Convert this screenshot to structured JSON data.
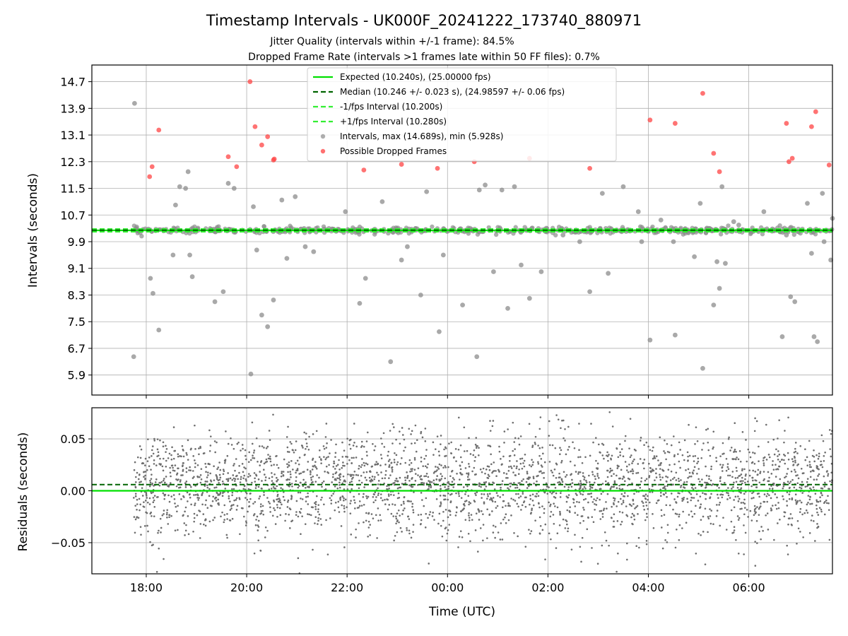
{
  "header": {
    "title": "Timestamp Intervals - UK000F_20241222_173740_880971",
    "subtitle_1": "Jitter Quality (intervals within +/-1 frame): 84.5%",
    "subtitle_2": "Dropped Frame Rate (intervals >1 frames late within 50 FF files): 0.7%"
  },
  "chart_data": [
    {
      "type": "scatter",
      "ylabel": "Intervals (seconds)",
      "x_range": [
        "16:55",
        "07:40"
      ],
      "ylim": [
        5.3,
        15.2
      ],
      "grid": true,
      "legend_placement": "top-center",
      "yticks": [
        5.9,
        6.7,
        7.5,
        8.3,
        9.1,
        9.9,
        10.7,
        11.5,
        12.3,
        13.1,
        13.9,
        14.7
      ],
      "ytick_labels": [
        "5.9",
        "6.7",
        "7.5",
        "8.3",
        "9.1",
        "9.9",
        "10.7",
        "11.5",
        "12.3",
        "13.1",
        "13.9",
        "14.7"
      ],
      "reference_lines": {
        "expected": 10.24,
        "median": 10.246,
        "minus_one_frame": 10.2,
        "plus_one_frame": 10.28
      },
      "legend": [
        {
          "label": "Expected (10.240s), (25.00000 fps)",
          "style": "solid",
          "color": "#00e000"
        },
        {
          "label": "Median (10.246 +/- 0.023 s), (24.98597 +/- 0.06 fps)",
          "style": "dashed",
          "color": "#006400"
        },
        {
          "label": "-1/fps Interval (10.200s)",
          "style": "dashed",
          "color": "#33ee33"
        },
        {
          "label": "+1/fps Interval (10.280s)",
          "style": "dashed",
          "color": "#33ee33"
        },
        {
          "label": "Intervals, max (14.689s), min (5.928s)",
          "style": "dot",
          "color": "#888888"
        },
        {
          "label": "Possible Dropped Frames",
          "style": "dot",
          "color": "#ff3333"
        }
      ],
      "series": [
        {
          "name": "Possible Dropped Frames",
          "color": "#ff4444",
          "points": [
            [
              "18:04",
              11.85
            ],
            [
              "18:07",
              12.15
            ],
            [
              "18:15",
              13.25
            ],
            [
              "19:38",
              12.45
            ],
            [
              "19:48",
              12.15
            ],
            [
              "20:04",
              14.7
            ],
            [
              "20:10",
              13.35
            ],
            [
              "20:18",
              12.8
            ],
            [
              "20:25",
              13.05
            ],
            [
              "20:32",
              12.35
            ],
            [
              "20:33",
              12.38
            ],
            [
              "22:20",
              12.05
            ],
            [
              "23:05",
              12.22
            ],
            [
              "23:48",
              12.1
            ],
            [
              "00:32",
              12.3
            ],
            [
              "01:38",
              12.4
            ],
            [
              "02:50",
              12.1
            ],
            [
              "04:02",
              13.55
            ],
            [
              "04:32",
              13.45
            ],
            [
              "05:05",
              14.35
            ],
            [
              "05:18",
              12.55
            ],
            [
              "05:25",
              12.0
            ],
            [
              "06:45",
              13.45
            ],
            [
              "06:48",
              12.3
            ],
            [
              "06:52",
              12.4
            ],
            [
              "07:15",
              13.35
            ],
            [
              "07:20",
              13.8
            ],
            [
              "07:36",
              12.2
            ]
          ]
        },
        {
          "name": "Intervals",
          "color": "#8c8c8c",
          "points": [
            [
              "17:45",
              6.45
            ],
            [
              "17:46",
              14.05
            ],
            [
              "18:05",
              8.8
            ],
            [
              "18:08",
              8.35
            ],
            [
              "18:15",
              7.25
            ],
            [
              "18:32",
              9.5
            ],
            [
              "18:35",
              11.0
            ],
            [
              "18:40",
              11.55
            ],
            [
              "18:47",
              11.5
            ],
            [
              "18:50",
              12.0
            ],
            [
              "18:52",
              9.5
            ],
            [
              "18:55",
              8.85
            ],
            [
              "19:22",
              8.1
            ],
            [
              "19:32",
              8.4
            ],
            [
              "19:38",
              11.65
            ],
            [
              "19:45",
              11.5
            ],
            [
              "20:05",
              5.93
            ],
            [
              "20:08",
              10.95
            ],
            [
              "20:12",
              9.65
            ],
            [
              "20:18",
              7.7
            ],
            [
              "20:25",
              7.35
            ],
            [
              "20:32",
              8.15
            ],
            [
              "20:42",
              11.15
            ],
            [
              "20:48",
              9.4
            ],
            [
              "20:58",
              11.25
            ],
            [
              "21:10",
              9.75
            ],
            [
              "21:20",
              9.6
            ],
            [
              "21:58",
              10.8
            ],
            [
              "22:15",
              8.05
            ],
            [
              "22:22",
              8.8
            ],
            [
              "22:42",
              11.1
            ],
            [
              "22:52",
              6.3
            ],
            [
              "23:05",
              9.35
            ],
            [
              "23:12",
              9.75
            ],
            [
              "23:28",
              8.3
            ],
            [
              "23:35",
              11.4
            ],
            [
              "23:50",
              7.2
            ],
            [
              "23:55",
              9.5
            ],
            [
              "00:18",
              8.0
            ],
            [
              "00:35",
              6.45
            ],
            [
              "00:38",
              11.45
            ],
            [
              "00:45",
              11.6
            ],
            [
              "00:55",
              9.0
            ],
            [
              "01:05",
              11.45
            ],
            [
              "01:12",
              7.9
            ],
            [
              "01:20",
              11.55
            ],
            [
              "01:28",
              9.2
            ],
            [
              "01:38",
              8.2
            ],
            [
              "01:52",
              9.0
            ],
            [
              "02:18",
              10.1
            ],
            [
              "02:38",
              9.9
            ],
            [
              "02:50",
              8.4
            ],
            [
              "03:05",
              11.35
            ],
            [
              "03:12",
              8.95
            ],
            [
              "03:30",
              11.55
            ],
            [
              "03:48",
              10.8
            ],
            [
              "03:52",
              9.9
            ],
            [
              "04:02",
              6.95
            ],
            [
              "04:15",
              10.55
            ],
            [
              "04:30",
              9.9
            ],
            [
              "04:32",
              7.1
            ],
            [
              "04:55",
              9.45
            ],
            [
              "05:02",
              11.05
            ],
            [
              "05:05",
              6.1
            ],
            [
              "05:12",
              10.3
            ],
            [
              "05:18",
              8.0
            ],
            [
              "05:22",
              9.3
            ],
            [
              "05:25",
              8.5
            ],
            [
              "05:28",
              11.55
            ],
            [
              "05:32",
              9.25
            ],
            [
              "05:42",
              10.5
            ],
            [
              "05:48",
              10.4
            ],
            [
              "06:18",
              10.8
            ],
            [
              "06:40",
              7.05
            ],
            [
              "06:45",
              10.1
            ],
            [
              "06:50",
              8.25
            ],
            [
              "06:55",
              8.1
            ],
            [
              "07:10",
              11.05
            ],
            [
              "07:15",
              9.55
            ],
            [
              "07:18",
              7.05
            ],
            [
              "07:22",
              6.9
            ],
            [
              "07:28",
              11.35
            ],
            [
              "07:30",
              9.9
            ],
            [
              "07:38",
              9.35
            ],
            [
              "07:40",
              10.6
            ]
          ]
        }
      ]
    },
    {
      "type": "scatter",
      "xlabel": "Time (UTC)",
      "ylabel": "Residuals (seconds)",
      "x_range": [
        "16:55",
        "07:40"
      ],
      "ylim": [
        -0.08,
        0.08
      ],
      "xticks": [
        "18:00",
        "20:00",
        "22:00",
        "00:00",
        "02:00",
        "04:00",
        "06:00"
      ],
      "yticks": [
        -0.05,
        0.0,
        0.05
      ],
      "ytick_labels": [
        "−0.05",
        "0.00",
        "0.05"
      ],
      "grid": true,
      "reference_lines": {
        "expected": 0.0,
        "median": 0.006
      },
      "series": [
        {
          "name": "Residuals",
          "color": "#6e6e6e",
          "x_start": "17:45",
          "x_end": "07:40",
          "count": 3000,
          "std": 0.025
        }
      ]
    }
  ]
}
